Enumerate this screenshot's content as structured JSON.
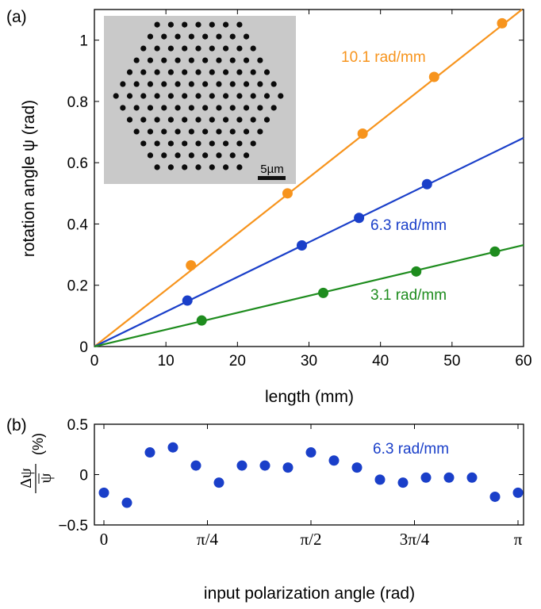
{
  "panel_a": {
    "label": "(a)",
    "inset": {
      "scale_bar_label": "5µm"
    },
    "chart_data": {
      "type": "scatter",
      "xlabel": "length (mm)",
      "ylabel": "rotation angle ψ (rad)",
      "xlim": [
        0,
        60
      ],
      "ylim": [
        0,
        1.1
      ],
      "xticks": [
        0,
        10,
        20,
        30,
        40,
        50,
        60
      ],
      "yticks": [
        0,
        0.2,
        0.4,
        0.6,
        0.8,
        1
      ],
      "ytick_labels": [
        "0",
        "0.2",
        "0.4",
        "0.6",
        "0.8",
        "1"
      ],
      "series": [
        {
          "name": "10.1 rad/mm",
          "color": "#f7941d",
          "slope": 0.0184,
          "x": [
            13.5,
            27,
            37.5,
            47.5,
            57
          ],
          "y": [
            0.265,
            0.5,
            0.695,
            0.88,
            1.055
          ]
        },
        {
          "name": "6.3 rad/mm",
          "color": "#1a3fc9",
          "slope": 0.01135,
          "x": [
            13,
            29,
            37,
            46.5
          ],
          "y": [
            0.15,
            0.33,
            0.42,
            0.53
          ]
        },
        {
          "name": "3.1 rad/mm",
          "color": "#1e8c1e",
          "slope": 0.00552,
          "x": [
            15,
            32,
            45,
            56
          ],
          "y": [
            0.085,
            0.175,
            0.245,
            0.31
          ]
        }
      ]
    }
  },
  "panel_b": {
    "label": "(b)",
    "chart_data": {
      "type": "scatter",
      "xlabel": "input polarization angle (rad)",
      "ylabel_top": "Δψ",
      "ylabel_bottom": "ψ",
      "ylabel_unit": "(%)",
      "xlim": [
        0,
        3.1416
      ],
      "ylim": [
        -0.5,
        0.5
      ],
      "xticks": [
        0,
        0.7854,
        1.5708,
        2.3562,
        3.1416
      ],
      "xtick_labels": [
        "0",
        "π/4",
        "π/2",
        "3π/4",
        "π"
      ],
      "yticks": [
        -0.5,
        0,
        0.5
      ],
      "ytick_labels": [
        "−0.5",
        "0",
        "0.5"
      ],
      "series": [
        {
          "name": "6.3 rad/mm",
          "color": "#1a3fc9",
          "x": [
            0,
            0.1745,
            0.349,
            0.5236,
            0.6981,
            0.8727,
            1.0472,
            1.2217,
            1.3963,
            1.5708,
            1.7453,
            1.9199,
            2.0944,
            2.2689,
            2.4435,
            2.618,
            2.7925,
            2.967,
            3.1416
          ],
          "y": [
            -0.18,
            -0.28,
            0.22,
            0.27,
            0.09,
            -0.08,
            0.09,
            0.09,
            0.07,
            0.22,
            0.14,
            0.07,
            -0.05,
            -0.08,
            -0.03,
            -0.03,
            -0.03,
            -0.22,
            -0.18
          ]
        }
      ]
    }
  }
}
